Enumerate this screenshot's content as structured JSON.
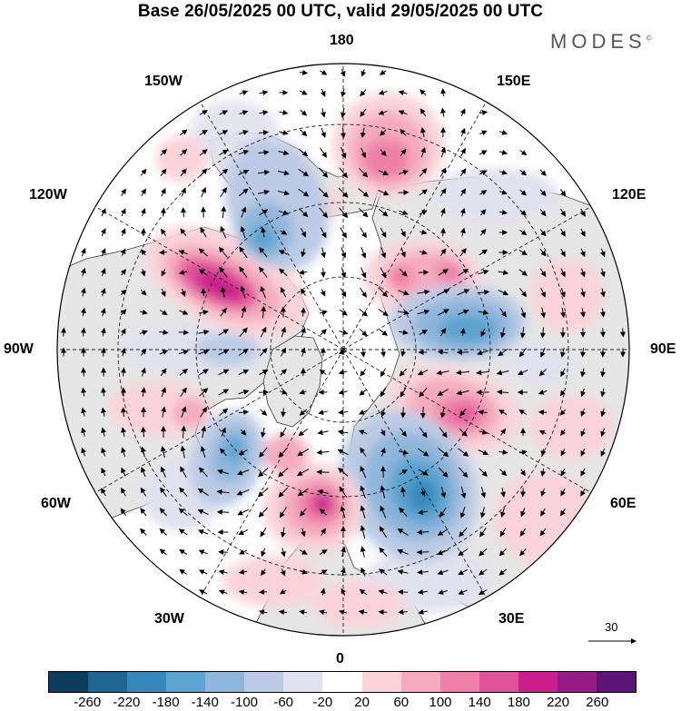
{
  "title": "Base 26/05/2025 00 UTC, valid 29/05/2025 00 UTC",
  "brand": "MODES",
  "brand_mark": "©",
  "longitude_labels": {
    "top": "180",
    "bottom": "0",
    "left": "90W",
    "right": "90E",
    "upper_left_outer": "150W",
    "upper_left_inner": "120W",
    "upper_right_outer": "150E",
    "upper_right_inner": "120E",
    "lower_left_inner": "60W",
    "lower_left_outer": "30W",
    "lower_right_inner": "60E",
    "lower_right_outer": "30E"
  },
  "reference_vector_label": "30",
  "colorbar": {
    "colors": [
      "#0d3c5e",
      "#1f6591",
      "#3688bb",
      "#5ba3d0",
      "#8fb6db",
      "#bccbe5",
      "#e2e1f0",
      "#ffffff",
      "#fbd3d9",
      "#f5abbd",
      "#ee7fa7",
      "#e0529a",
      "#c91e8b",
      "#951b85",
      "#5c1577"
    ],
    "ticks": [
      "-260",
      "-220",
      "-180",
      "-140",
      "-100",
      "-60",
      "-20",
      "20",
      "60",
      "100",
      "140",
      "180",
      "220",
      "260"
    ]
  },
  "map": {
    "projection": "north-polar-stereographic",
    "latitude_circles": true,
    "meridian_spacing_deg": 30,
    "field": "anomaly (shaded) with wind vectors",
    "anomaly_centers": [
      {
        "sign": "positive",
        "region": "Gulf of Alaska / Canada",
        "level": "140-180"
      },
      {
        "sign": "positive",
        "region": "East Siberian Sea / North Pacific",
        "level": "100-140"
      },
      {
        "sign": "positive",
        "region": "Central Siberia",
        "level": "100-140"
      },
      {
        "sign": "positive",
        "region": "North Atlantic west of Iberia",
        "level": "140-180"
      },
      {
        "sign": "negative",
        "region": "Western Siberia / Kara Sea",
        "level": "-140 to -100"
      },
      {
        "sign": "negative",
        "region": "Scandinavia / Eastern Europe",
        "level": "-180 to -140"
      },
      {
        "sign": "negative",
        "region": "Bering Strait",
        "level": "-140 to -100"
      },
      {
        "sign": "negative",
        "region": "Labrador Sea",
        "level": "-140 to -100"
      }
    ],
    "colors": {
      "land": "#e6e6e6",
      "ocean": "#ffffff",
      "coastline": "#333333",
      "vector": "#000000"
    }
  }
}
